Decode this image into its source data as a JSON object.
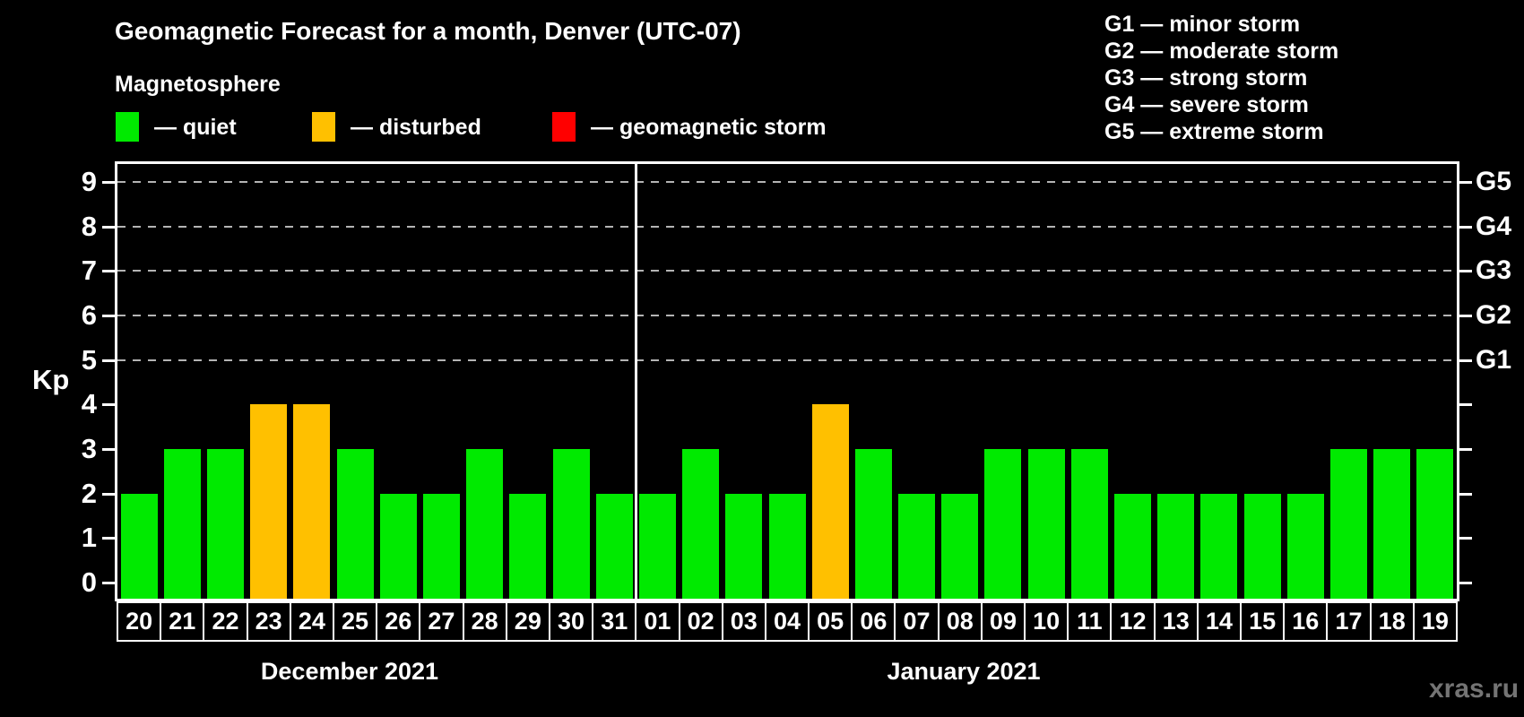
{
  "watermark": "xras.ru",
  "chart_data": {
    "type": "bar",
    "title": "Geomagnetic Forecast for a month, Denver (UTC-07)",
    "legend_title": "Magnetosphere",
    "xlabel": "",
    "ylabel": "Kp",
    "ylim": [
      0,
      9
    ],
    "yticks": [
      0,
      1,
      2,
      3,
      4,
      5,
      6,
      7,
      8,
      9
    ],
    "gridlines_at": [
      5,
      6,
      7,
      8,
      9
    ],
    "grid": "dashed horizontal at storm levels only",
    "legend_position": "top-left under subtitle",
    "right_axis_labels": {
      "5": "G1",
      "6": "G2",
      "7": "G3",
      "8": "G4",
      "9": "G5"
    },
    "state_colors": {
      "quiet": "#00ea00",
      "disturbed": "#ffc000",
      "storm": "#ff0000"
    },
    "legend": [
      {
        "state": "quiet",
        "color": "#00ea00",
        "label": "— quiet"
      },
      {
        "state": "disturbed",
        "color": "#ffc000",
        "label": "— disturbed"
      },
      {
        "state": "storm",
        "color": "#ff0000",
        "label": "— geomagnetic storm"
      }
    ],
    "g_scale_legend": [
      "G1 — minor storm",
      "G2 — moderate storm",
      "G3 — strong storm",
      "G4 — severe storm",
      "G5 — extreme storm"
    ],
    "series": [
      {
        "name": "December 2021",
        "categories": [
          "20",
          "21",
          "22",
          "23",
          "24",
          "25",
          "26",
          "27",
          "28",
          "29",
          "30",
          "31"
        ],
        "values": [
          2,
          3,
          3,
          4,
          4,
          3,
          2,
          2,
          3,
          2,
          3,
          2
        ],
        "states": [
          "quiet",
          "quiet",
          "quiet",
          "disturbed",
          "disturbed",
          "quiet",
          "quiet",
          "quiet",
          "quiet",
          "quiet",
          "quiet",
          "quiet"
        ]
      },
      {
        "name": "January 2021",
        "categories": [
          "01",
          "02",
          "03",
          "04",
          "05",
          "06",
          "07",
          "08",
          "09",
          "10",
          "11",
          "12",
          "13",
          "14",
          "15",
          "16",
          "17",
          "18",
          "19"
        ],
        "values": [
          2,
          3,
          2,
          2,
          4,
          3,
          2,
          2,
          3,
          3,
          3,
          2,
          2,
          2,
          2,
          2,
          3,
          3,
          3
        ],
        "states": [
          "quiet",
          "quiet",
          "quiet",
          "quiet",
          "disturbed",
          "quiet",
          "quiet",
          "quiet",
          "quiet",
          "quiet",
          "quiet",
          "quiet",
          "quiet",
          "quiet",
          "quiet",
          "quiet",
          "quiet",
          "quiet",
          "quiet"
        ]
      }
    ]
  }
}
